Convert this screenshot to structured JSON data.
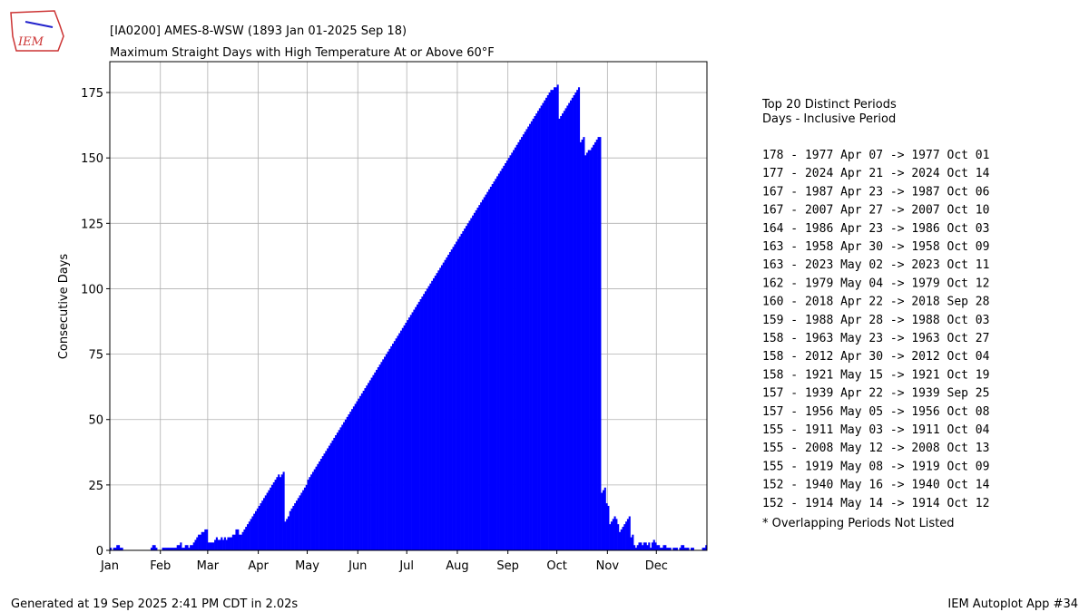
{
  "chart_data": {
    "type": "bar",
    "title": "[IA0200] AMES-8-WSW (1893 Jan 01-2025 Sep 18)",
    "subtitle": "Maximum Straight Days with High Temperature At or Above 60°F",
    "y_label": "Consecutive Days",
    "color": "#0000ff",
    "grid": true,
    "xlim": [
      1,
      367
    ],
    "ylim": [
      0,
      186.8
    ],
    "xticks": [
      {
        "value": 1,
        "label": "Jan"
      },
      {
        "value": 32,
        "label": "Feb"
      },
      {
        "value": 61,
        "label": "Mar"
      },
      {
        "value": 92,
        "label": "Apr"
      },
      {
        "value": 122,
        "label": "May"
      },
      {
        "value": 153,
        "label": "Jun"
      },
      {
        "value": 183,
        "label": "Jul"
      },
      {
        "value": 214,
        "label": "Aug"
      },
      {
        "value": 245,
        "label": "Sep"
      },
      {
        "value": 275,
        "label": "Oct"
      },
      {
        "value": 306,
        "label": "Nov"
      },
      {
        "value": 336,
        "label": "Dec"
      }
    ],
    "yticks": [
      0,
      25,
      50,
      75,
      100,
      125,
      150,
      175
    ],
    "x": [
      1,
      2,
      3,
      4,
      5,
      6,
      7,
      8,
      9,
      10,
      11,
      12,
      13,
      14,
      15,
      16,
      17,
      18,
      19,
      20,
      21,
      22,
      23,
      24,
      25,
      26,
      27,
      28,
      29,
      30,
      31,
      32,
      33,
      34,
      35,
      36,
      37,
      38,
      39,
      40,
      41,
      42,
      43,
      44,
      45,
      46,
      47,
      48,
      49,
      50,
      51,
      52,
      53,
      54,
      55,
      56,
      57,
      58,
      59,
      60,
      61,
      62,
      63,
      64,
      65,
      66,
      67,
      68,
      69,
      70,
      71,
      72,
      73,
      74,
      75,
      76,
      77,
      78,
      79,
      80,
      81,
      82,
      83,
      84,
      85,
      86,
      87,
      88,
      89,
      90,
      91,
      92,
      93,
      94,
      95,
      96,
      97,
      98,
      99,
      100,
      101,
      102,
      103,
      104,
      105,
      106,
      107,
      108,
      109,
      110,
      111,
      112,
      113,
      114,
      115,
      116,
      117,
      118,
      119,
      120,
      121,
      122,
      123,
      124,
      125,
      126,
      127,
      128,
      129,
      130,
      131,
      132,
      133,
      134,
      135,
      136,
      137,
      138,
      139,
      140,
      141,
      142,
      143,
      144,
      145,
      146,
      147,
      148,
      149,
      150,
      151,
      152,
      153,
      154,
      155,
      156,
      157,
      158,
      159,
      160,
      161,
      162,
      163,
      164,
      165,
      166,
      167,
      168,
      169,
      170,
      171,
      172,
      173,
      174,
      175,
      176,
      177,
      178,
      179,
      180,
      181,
      182,
      183,
      184,
      185,
      186,
      187,
      188,
      189,
      190,
      191,
      192,
      193,
      194,
      195,
      196,
      197,
      198,
      199,
      200,
      201,
      202,
      203,
      204,
      205,
      206,
      207,
      208,
      209,
      210,
      211,
      212,
      213,
      214,
      215,
      216,
      217,
      218,
      219,
      220,
      221,
      222,
      223,
      224,
      225,
      226,
      227,
      228,
      229,
      230,
      231,
      232,
      233,
      234,
      235,
      236,
      237,
      238,
      239,
      240,
      241,
      242,
      243,
      244,
      245,
      246,
      247,
      248,
      249,
      250,
      251,
      252,
      253,
      254,
      255,
      256,
      257,
      258,
      259,
      260,
      261,
      262,
      263,
      264,
      265,
      266,
      267,
      268,
      269,
      270,
      271,
      272,
      273,
      274,
      275,
      276,
      277,
      278,
      279,
      280,
      281,
      282,
      283,
      284,
      285,
      286,
      287,
      288,
      289,
      290,
      291,
      292,
      293,
      294,
      295,
      296,
      297,
      298,
      299,
      300,
      301,
      302,
      303,
      304,
      305,
      306,
      307,
      308,
      309,
      310,
      311,
      312,
      313,
      314,
      315,
      316,
      317,
      318,
      319,
      320,
      321,
      322,
      323,
      324,
      325,
      326,
      327,
      328,
      329,
      330,
      331,
      332,
      333,
      334,
      335,
      336,
      337,
      338,
      339,
      340,
      341,
      342,
      343,
      344,
      345,
      346,
      347,
      348,
      349,
      350,
      351,
      352,
      353,
      354,
      355,
      356,
      357,
      358,
      359,
      360,
      361,
      362,
      363,
      364,
      365,
      366
    ],
    "values": [
      1,
      0,
      1,
      1,
      2,
      2,
      1,
      1,
      0,
      0,
      0,
      0,
      0,
      0,
      0,
      0,
      0,
      0,
      0,
      0,
      0,
      0,
      0,
      0,
      0,
      1,
      2,
      2,
      1,
      0,
      0,
      0,
      1,
      1,
      1,
      1,
      1,
      1,
      1,
      1,
      1,
      2,
      2,
      3,
      1,
      1,
      2,
      2,
      1,
      2,
      2,
      3,
      4,
      5,
      6,
      6,
      7,
      7,
      8,
      8,
      3,
      3,
      3,
      3,
      4,
      5,
      4,
      4,
      5,
      4,
      5,
      4,
      5,
      5,
      5,
      6,
      6,
      8,
      8,
      6,
      6,
      7,
      8,
      9,
      10,
      11,
      12,
      13,
      14,
      15,
      16,
      17,
      18,
      19,
      20,
      21,
      22,
      23,
      24,
      25,
      26,
      27,
      28,
      29,
      28,
      29,
      30,
      11,
      12,
      13,
      15,
      16,
      17,
      18,
      19,
      20,
      21,
      22,
      23,
      24,
      25,
      27,
      28,
      29,
      30,
      31,
      32,
      33,
      34,
      35,
      36,
      37,
      38,
      39,
      40,
      41,
      42,
      43,
      44,
      45,
      46,
      47,
      48,
      49,
      50,
      51,
      52,
      53,
      54,
      55,
      56,
      57,
      58,
      59,
      60,
      61,
      62,
      63,
      64,
      65,
      66,
      67,
      68,
      69,
      70,
      71,
      72,
      73,
      74,
      75,
      76,
      77,
      78,
      79,
      80,
      81,
      82,
      83,
      84,
      85,
      86,
      87,
      88,
      89,
      90,
      91,
      92,
      93,
      94,
      95,
      96,
      97,
      98,
      99,
      100,
      101,
      102,
      103,
      104,
      105,
      106,
      107,
      108,
      109,
      110,
      111,
      112,
      113,
      114,
      115,
      116,
      117,
      118,
      119,
      120,
      121,
      122,
      123,
      124,
      125,
      126,
      127,
      128,
      129,
      130,
      131,
      132,
      133,
      134,
      135,
      136,
      137,
      138,
      139,
      140,
      141,
      142,
      143,
      144,
      145,
      146,
      147,
      148,
      149,
      150,
      151,
      152,
      153,
      154,
      155,
      156,
      157,
      158,
      159,
      160,
      161,
      162,
      163,
      164,
      165,
      166,
      167,
      168,
      169,
      170,
      171,
      172,
      173,
      174,
      175,
      176,
      176,
      177,
      177,
      178,
      165,
      166,
      167,
      168,
      169,
      170,
      171,
      172,
      173,
      174,
      175,
      176,
      177,
      156,
      157,
      158,
      151,
      152,
      153,
      153,
      154,
      155,
      156,
      157,
      158,
      158,
      22,
      23,
      24,
      18,
      17,
      10,
      11,
      12,
      13,
      12,
      10,
      7,
      8,
      9,
      10,
      11,
      12,
      13,
      5,
      6,
      2,
      1,
      2,
      3,
      3,
      2,
      3,
      3,
      2,
      3,
      1,
      3,
      4,
      3,
      2,
      2,
      1,
      1,
      2,
      2,
      1,
      1,
      1,
      0,
      1,
      1,
      1,
      0,
      1,
      2,
      2,
      1,
      1,
      1,
      0,
      1,
      1,
      0,
      0,
      0,
      0,
      0,
      1,
      1,
      2
    ]
  },
  "logo": "IEM",
  "side_panel": {
    "heading": [
      "Top 20 Distinct Periods",
      "Days - Inclusive Period"
    ],
    "periods": [
      "178 - 1977 Apr 07 -> 1977 Oct 01",
      "177 - 2024 Apr 21 -> 2024 Oct 14",
      "167 - 1987 Apr 23 -> 1987 Oct 06",
      "167 - 2007 Apr 27 -> 2007 Oct 10",
      "164 - 1986 Apr 23 -> 1986 Oct 03",
      "163 - 1958 Apr 30 -> 1958 Oct 09",
      "163 - 2023 May 02 -> 2023 Oct 11",
      "162 - 1979 May 04 -> 1979 Oct 12",
      "160 - 2018 Apr 22 -> 2018 Sep 28",
      "159 - 1988 Apr 28 -> 1988 Oct 03",
      "158 - 1963 May 23 -> 1963 Oct 27",
      "158 - 2012 Apr 30 -> 2012 Oct 04",
      "158 - 1921 May 15 -> 1921 Oct 19",
      "157 - 1939 Apr 22 -> 1939 Sep 25",
      "157 - 1956 May 05 -> 1956 Oct 08",
      "155 - 1911 May 03 -> 1911 Oct 04",
      "155 - 2008 May 12 -> 2008 Oct 13",
      "155 - 1919 May 08 -> 1919 Oct 09",
      "152 - 1940 May 16 -> 1940 Oct 14",
      "152 - 1914 May 14 -> 1914 Oct 12"
    ],
    "note": "* Overlapping Periods Not Listed"
  },
  "footer": {
    "left": "Generated at 19 Sep 2025 2:41 PM CDT in 2.02s",
    "right": "IEM Autoplot App #34"
  }
}
